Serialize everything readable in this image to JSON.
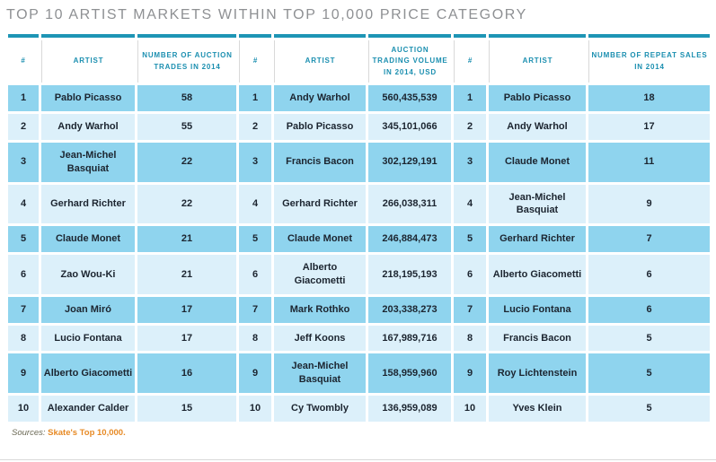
{
  "title": "TOP 10 ARTIST MARKETS WITHIN TOP 10,000 PRICE CATEGORY",
  "colors": {
    "accent_teal": "#1e95b5",
    "header_text": "#1b8fb0",
    "row_dark": "#8fd4ee",
    "row_light": "#dcf0fa",
    "cell_text": "#1c2530",
    "title_text": "#8e9093",
    "source_label_text": "#6c6a56",
    "source_link_text": "#e78a25"
  },
  "table": {
    "headers": [
      "#",
      "ARTIST",
      "NUMBER OF AUCTION TRADES IN 2014",
      "#",
      "ARTIST",
      "AUCTION TRADING VOLUME IN 2014, USD",
      "#",
      "ARTIST",
      "NUMBER OF REPEAT SALES IN 2014"
    ]
  },
  "chart_data": [
    {
      "type": "table",
      "title": "Number of auction trades in 2014",
      "columns": [
        "#",
        "ARTIST",
        "NUMBER OF AUCTION TRADES IN 2014"
      ],
      "rows": [
        [
          "1",
          "Pablo Picasso",
          "58"
        ],
        [
          "2",
          "Andy Warhol",
          "55"
        ],
        [
          "3",
          "Jean-Michel Basquiat",
          "22"
        ],
        [
          "4",
          "Gerhard Richter",
          "22"
        ],
        [
          "5",
          "Claude Monet",
          "21"
        ],
        [
          "6",
          "Zao Wou-Ki",
          "21"
        ],
        [
          "7",
          "Joan Miró",
          "17"
        ],
        [
          "8",
          "Lucio Fontana",
          "17"
        ],
        [
          "9",
          "Alberto Giacometti",
          "16"
        ],
        [
          "10",
          "Alexander Calder",
          "15"
        ]
      ]
    },
    {
      "type": "table",
      "title": "Auction trading volume in 2014, USD",
      "columns": [
        "#",
        "ARTIST",
        "AUCTION TRADING VOLUME IN 2014, USD"
      ],
      "rows": [
        [
          "1",
          "Andy Warhol",
          "560,435,539"
        ],
        [
          "2",
          "Pablo Picasso",
          "345,101,066"
        ],
        [
          "3",
          "Francis Bacon",
          "302,129,191"
        ],
        [
          "4",
          "Gerhard Richter",
          "266,038,311"
        ],
        [
          "5",
          "Claude Monet",
          "246,884,473"
        ],
        [
          "6",
          "Alberto Giacometti",
          "218,195,193"
        ],
        [
          "7",
          "Mark Rothko",
          "203,338,273"
        ],
        [
          "8",
          "Jeff Koons",
          "167,989,716"
        ],
        [
          "9",
          "Jean-Michel Basquiat",
          "158,959,960"
        ],
        [
          "10",
          "Cy Twombly",
          "136,959,089"
        ]
      ]
    },
    {
      "type": "table",
      "title": "Number of repeat sales in 2014",
      "columns": [
        "#",
        "ARTIST",
        "NUMBER OF REPEAT SALES IN 2014"
      ],
      "rows": [
        [
          "1",
          "Pablo Picasso",
          "18"
        ],
        [
          "2",
          "Andy Warhol",
          "17"
        ],
        [
          "3",
          "Claude Monet",
          "11"
        ],
        [
          "4",
          "Jean-Michel Basquiat",
          "9"
        ],
        [
          "5",
          "Gerhard Richter",
          "7"
        ],
        [
          "6",
          "Alberto Giacometti",
          "6"
        ],
        [
          "7",
          "Lucio Fontana",
          "6"
        ],
        [
          "8",
          "Francis Bacon",
          "5"
        ],
        [
          "9",
          "Roy Lichtenstein",
          "5"
        ],
        [
          "10",
          "Yves Klein",
          "5"
        ]
      ]
    }
  ],
  "footer": {
    "label": "Sources:",
    "link": "Skate's Top 10,000."
  }
}
